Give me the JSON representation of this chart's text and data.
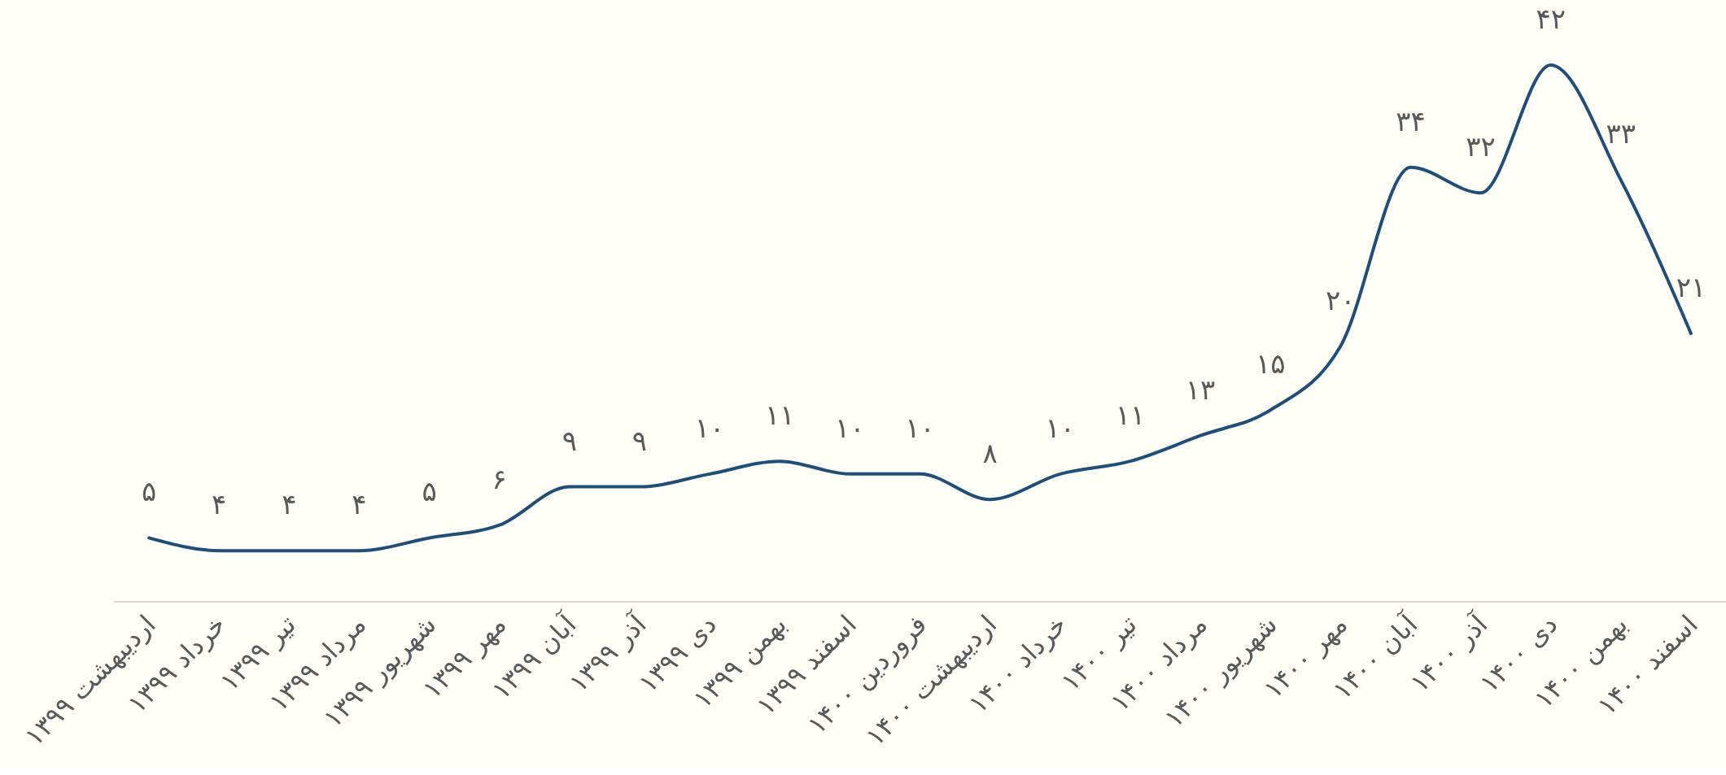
{
  "chart_data": {
    "type": "line",
    "categories": [
      "اردیبهشت ۱۳۹۹",
      "خرداد ۱۳۹۹",
      "تیر ۱۳۹۹",
      "مرداد ۱۳۹۹",
      "شهریور ۱۳۹۹",
      "مهر ۱۳۹۹",
      "آبان ۱۳۹۹",
      "آذر ۱۳۹۹",
      "دی ۱۳۹۹",
      "بهمن ۱۳۹۹",
      "اسفند ۱۳۹۹",
      "فروردین ۱۴۰۰",
      "اردیبهشت ۱۴۰۰",
      "خرداد ۱۴۰۰",
      "تیر ۱۴۰۰",
      "مرداد ۱۴۰۰",
      "شهریور ۱۴۰۰",
      "مهر ۱۴۰۰",
      "آبان ۱۴۰۰",
      "آذر ۱۴۰۰",
      "دی ۱۴۰۰",
      "بهمن ۱۴۰۰",
      "اسفند ۱۴۰۰"
    ],
    "series": [
      {
        "color": "#1f4e79",
        "values": [
          5,
          4,
          4,
          4,
          5,
          6,
          9,
          9,
          10,
          11,
          10,
          10,
          8,
          10,
          11,
          13,
          15,
          20,
          34,
          32,
          42,
          33,
          21
        ],
        "value_labels": [
          "۵",
          "۴",
          "۴",
          "۴",
          "۵",
          "۶",
          "۹",
          "۹",
          "۱۰",
          "۱۱",
          "۱۰",
          "۱۰",
          "۸",
          "۱۰",
          "۱۱",
          "۱۳",
          "۱۵",
          "۲۰",
          "۳۴",
          "۳۲",
          "۴۲",
          "۳۳",
          "۲۱"
        ]
      }
    ],
    "marker": "none",
    "line_style": "solid"
  }
}
